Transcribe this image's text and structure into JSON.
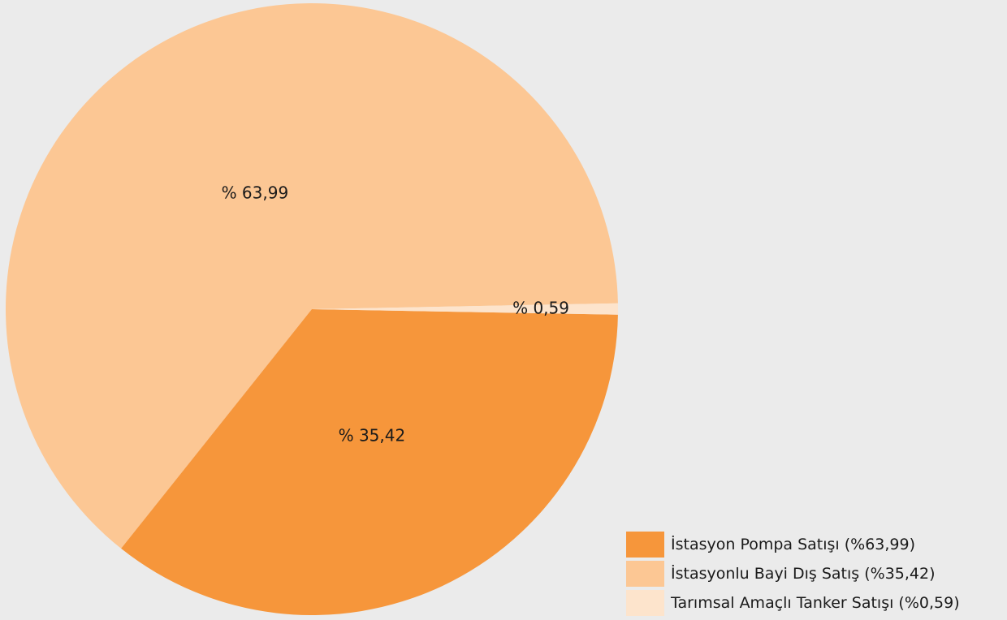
{
  "chart_data": {
    "type": "pie",
    "start_angle_deg": 1.1,
    "direction": "counterclockwise",
    "slices": [
      {
        "legend": "İstasyon Pompa Satışı (%63,99)",
        "value": 63.99,
        "label": "% 63,99",
        "color": "#fcc794"
      },
      {
        "legend": "İstasyonlu Bayi Dış Satış (%35,42)",
        "value": 35.42,
        "label": "% 35,42",
        "color": "#f6963b"
      },
      {
        "legend": "Tarımsal Amaçlı Tanker Satışı (%0,59)",
        "value": 0.59,
        "label": "% 0,59",
        "color": "#fde4cc"
      }
    ],
    "legend_swatch_colors": [
      "#f6963b",
      "#fcc794",
      "#fde4cc"
    ],
    "legend_position": "bottom-right"
  }
}
